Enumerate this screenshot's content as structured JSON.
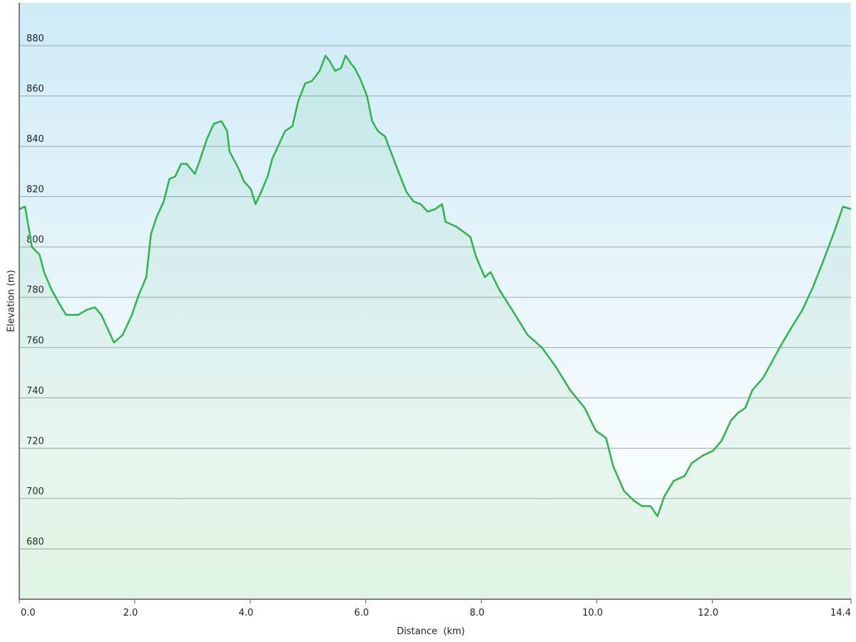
{
  "chart_data": {
    "type": "area",
    "xlabel": "Distance  (km)",
    "ylabel": "Elevation (m)",
    "x": [
      0,
      0.1,
      0.16,
      0.22,
      0.35,
      0.43,
      0.56,
      0.68,
      0.81,
      1.02,
      1.17,
      1.31,
      1.42,
      1.54,
      1.64,
      1.79,
      1.95,
      2.07,
      2.2,
      2.28,
      2.38,
      2.5,
      2.6,
      2.7,
      2.8,
      2.9,
      3.04,
      3.12,
      3.25,
      3.37,
      3.5,
      3.6,
      3.64,
      3.8,
      3.89,
      4.01,
      4.09,
      4.17,
      4.3,
      4.38,
      4.48,
      4.6,
      4.73,
      4.83,
      4.95,
      5.07,
      5.2,
      5.3,
      5.37,
      5.47,
      5.57,
      5.65,
      5.74,
      5.81,
      5.9,
      6.02,
      6.11,
      6.21,
      6.33,
      6.48,
      6.58,
      6.7,
      6.83,
      6.95,
      7.07,
      7.2,
      7.32,
      7.38,
      7.57,
      7.81,
      7.91,
      8.06,
      8.16,
      8.31,
      8.56,
      8.8,
      9.05,
      9.3,
      9.54,
      9.79,
      9.98,
      10.16,
      10.28,
      10.47,
      10.65,
      10.78,
      10.93,
      11.05,
      11.17,
      11.33,
      11.52,
      11.64,
      11.83,
      12.01,
      12.16,
      12.32,
      12.44,
      12.57,
      12.69,
      12.88,
      13.0,
      13.19,
      13.37,
      13.56,
      13.74,
      13.93,
      14.11,
      14.26,
      14.4
    ],
    "values": [
      815,
      816,
      808,
      800,
      797,
      790,
      783,
      778,
      773,
      773,
      775,
      776,
      773,
      767,
      762,
      765,
      773,
      781,
      788,
      805,
      812,
      818,
      827,
      828,
      833,
      833,
      829,
      834,
      843,
      849,
      850,
      846,
      838,
      831,
      826,
      823,
      817,
      821,
      828,
      835,
      840,
      846,
      848,
      858,
      865,
      866,
      870,
      876,
      874,
      870,
      871,
      876,
      873,
      871,
      867,
      860,
      850,
      846,
      844,
      835,
      829,
      822,
      818,
      817,
      814,
      815,
      817,
      810,
      808,
      804,
      796,
      788,
      790,
      783,
      774,
      765,
      760,
      752,
      743,
      736,
      727,
      724,
      713,
      703,
      699,
      697,
      697,
      693,
      701,
      707,
      709,
      714,
      717,
      719,
      723,
      731,
      734,
      736,
      743,
      748,
      753,
      761,
      768,
      775,
      784,
      795,
      806,
      816,
      815
    ],
    "color": "#2fb34c",
    "xlim": [
      0,
      14.4
    ],
    "ylim": [
      660,
      897
    ],
    "xticks": [
      {
        "value": 0,
        "label": "0.0"
      },
      {
        "value": 2,
        "label": "2.0"
      },
      {
        "value": 4,
        "label": "4.0"
      },
      {
        "value": 6,
        "label": "6.0"
      },
      {
        "value": 8,
        "label": "8.0"
      },
      {
        "value": 10,
        "label": "10.0"
      },
      {
        "value": 12,
        "label": "12.0"
      },
      {
        "value": 14.4,
        "label": "14.4"
      }
    ],
    "yticks": [
      680,
      700,
      720,
      740,
      760,
      780,
      800,
      820,
      840,
      860,
      880
    ],
    "grid": true
  }
}
